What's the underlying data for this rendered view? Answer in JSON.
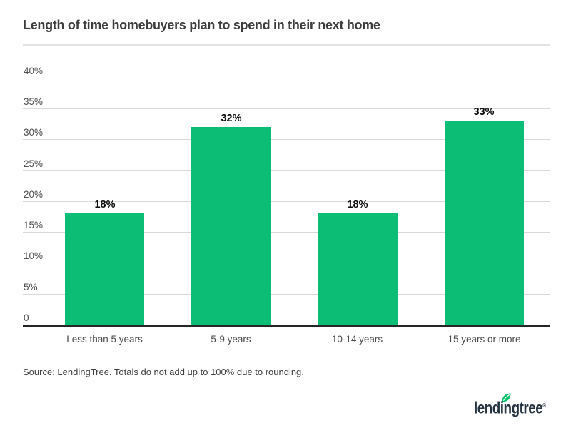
{
  "title": "Length of time homebuyers plan to spend in their next home",
  "source_note": "Source: LendingTree. Totals do not add up to 100% due to rounding.",
  "logo": {
    "text": "lendingtree",
    "registered": "®",
    "icon": "leaf-icon"
  },
  "colors": {
    "background": "#ffffff",
    "bar": "#0cbd75",
    "gridline": "#d9d9d9",
    "axis": "#262626",
    "title": "#3d3d3d",
    "tick_label": "#4f4f4f",
    "category_label": "#4a4a4a",
    "value_label": "#0d0d0d",
    "source": "#3f3f3f",
    "divider": "#e3e3e3",
    "logo_navy": "#263442",
    "leaf_green": "#00bf6a"
  },
  "chart_data": {
    "type": "bar",
    "title": "Length of time homebuyers plan to spend in their next home",
    "categories": [
      "Less than 5 years",
      "5-9 years",
      "10-14 years",
      "15 years or more"
    ],
    "values": [
      18,
      32,
      18,
      33
    ],
    "value_labels": [
      "18%",
      "32%",
      "18%",
      "33%"
    ],
    "xlabel": "",
    "ylabel": "",
    "ylim": [
      0,
      40
    ],
    "ytick_interval": 5,
    "ytick_labels": [
      "0",
      "5%",
      "10%",
      "15%",
      "20%",
      "25%",
      "30%",
      "35%",
      "40%"
    ],
    "grid": true,
    "legend": false,
    "bar_color": "#0cbd75"
  }
}
